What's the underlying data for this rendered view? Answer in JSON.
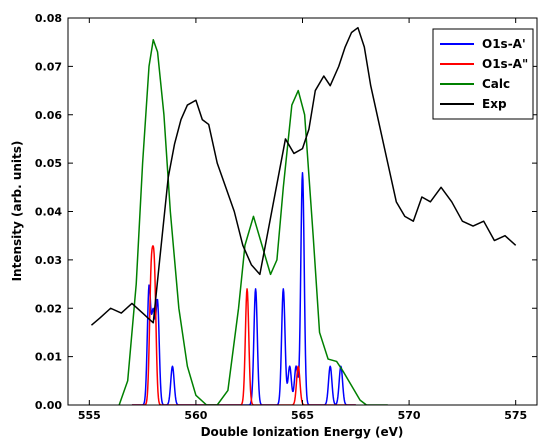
{
  "chart_data": {
    "type": "line",
    "title": "",
    "xlabel": "Double Ionization Energy (eV)",
    "ylabel": "Intensity (arb. units)",
    "xlim": [
      554,
      576
    ],
    "ylim": [
      0,
      0.08
    ],
    "xticks": [
      555,
      560,
      565,
      570,
      575
    ],
    "yticks": [
      0.0,
      0.01,
      0.02,
      0.03,
      0.04,
      0.05,
      0.06,
      0.07,
      0.08
    ],
    "xtick_labels": [
      "555",
      "560",
      "565",
      "570",
      "575"
    ],
    "ytick_labels": [
      "0.00",
      "0.01",
      "0.02",
      "0.03",
      "0.04",
      "0.05",
      "0.06",
      "0.07",
      "0.08"
    ],
    "grid": false,
    "legend_position": "top-right",
    "series": [
      {
        "name": "O1s-A'",
        "color": "#0000ff",
        "peaks": [
          {
            "x": 557.8,
            "h": 0.024
          },
          {
            "x": 558.0,
            "h": 0.018
          },
          {
            "x": 558.2,
            "h": 0.021
          },
          {
            "x": 558.9,
            "h": 0.008
          },
          {
            "x": 562.8,
            "h": 0.024
          },
          {
            "x": 564.1,
            "h": 0.024
          },
          {
            "x": 564.4,
            "h": 0.008
          },
          {
            "x": 564.7,
            "h": 0.008
          },
          {
            "x": 565.0,
            "h": 0.048
          },
          {
            "x": 566.3,
            "h": 0.008
          },
          {
            "x": 566.8,
            "h": 0.008
          }
        ],
        "peak_width": 0.08
      },
      {
        "name": "O1s-A\"",
        "color": "#ff0000",
        "peaks": [
          {
            "x": 557.9,
            "h": 0.025
          },
          {
            "x": 558.05,
            "h": 0.026
          },
          {
            "x": 562.4,
            "h": 0.024
          },
          {
            "x": 564.8,
            "h": 0.008
          }
        ],
        "peak_width": 0.08
      },
      {
        "name": "Calc",
        "color": "#008000",
        "x": [
          556.4,
          556.8,
          557.2,
          557.5,
          557.8,
          558.0,
          558.2,
          558.5,
          558.8,
          559.2,
          559.6,
          560.0,
          560.5,
          561.0,
          561.5,
          562.0,
          562.3,
          562.7,
          563.1,
          563.5,
          563.8,
          564.1,
          564.5,
          564.8,
          565.1,
          565.5,
          565.8,
          566.2,
          566.6,
          566.9,
          567.3,
          567.7,
          568.0,
          568.5,
          569.0
        ],
        "values": [
          0.0,
          0.005,
          0.025,
          0.05,
          0.07,
          0.0755,
          0.073,
          0.06,
          0.04,
          0.02,
          0.008,
          0.002,
          0.0,
          0.0,
          0.003,
          0.02,
          0.033,
          0.039,
          0.033,
          0.027,
          0.03,
          0.045,
          0.062,
          0.065,
          0.06,
          0.035,
          0.015,
          0.0095,
          0.009,
          0.007,
          0.004,
          0.001,
          0.0,
          0.0,
          0.0
        ]
      },
      {
        "name": "Exp",
        "color": "#000000",
        "x": [
          555.1,
          555.5,
          556.0,
          556.5,
          557.0,
          557.5,
          558.0,
          558.3,
          558.7,
          559.0,
          559.3,
          559.6,
          560.0,
          560.3,
          560.6,
          561.0,
          561.4,
          561.8,
          562.2,
          562.6,
          563.0,
          563.3,
          563.6,
          563.9,
          564.2,
          564.6,
          565.0,
          565.3,
          565.6,
          566.0,
          566.3,
          566.7,
          567.0,
          567.3,
          567.6,
          567.9,
          568.2,
          568.6,
          569.0,
          569.4,
          569.8,
          570.2,
          570.6,
          571.0,
          571.5,
          572.0,
          572.5,
          573.0,
          573.5,
          574.0,
          574.5,
          575.0
        ],
        "values": [
          0.0165,
          0.018,
          0.02,
          0.019,
          0.021,
          0.019,
          0.017,
          0.03,
          0.047,
          0.054,
          0.059,
          0.062,
          0.063,
          0.059,
          0.058,
          0.05,
          0.045,
          0.04,
          0.033,
          0.029,
          0.027,
          0.034,
          0.041,
          0.048,
          0.055,
          0.052,
          0.053,
          0.057,
          0.065,
          0.068,
          0.066,
          0.07,
          0.074,
          0.077,
          0.078,
          0.074,
          0.066,
          0.058,
          0.05,
          0.042,
          0.039,
          0.038,
          0.043,
          0.042,
          0.045,
          0.042,
          0.038,
          0.037,
          0.038,
          0.034,
          0.035,
          0.033
        ]
      }
    ]
  }
}
